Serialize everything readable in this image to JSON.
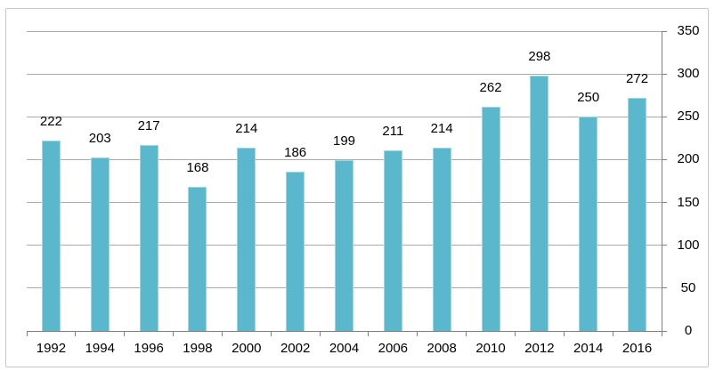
{
  "chart_data": {
    "type": "bar",
    "title": "",
    "xlabel": "",
    "ylabel": "",
    "categories": [
      "1992",
      "1994",
      "1996",
      "1998",
      "2000",
      "2002",
      "2004",
      "2006",
      "2008",
      "2010",
      "2012",
      "2014",
      "2016"
    ],
    "values": [
      222,
      203,
      217,
      168,
      214,
      186,
      199,
      211,
      214,
      262,
      298,
      250,
      272
    ],
    "value_labels": [
      "222",
      "203",
      "217",
      "168",
      "214",
      "186",
      "199",
      "211",
      "214",
      "262",
      "298",
      "250",
      "272"
    ],
    "ylim": [
      0,
      350
    ],
    "yticks": [
      0,
      50,
      100,
      150,
      200,
      250,
      300,
      350
    ],
    "ytick_labels": [
      "0",
      "50",
      "100",
      "150",
      "200",
      "250",
      "300",
      "350"
    ],
    "y_axis_side": "right",
    "grid": "horizontal-major",
    "legend_position": "none",
    "colors": {
      "bar_fill": "#5BB7CC",
      "bar_edge": "#A3D6E3",
      "gridline": "#ABABAB",
      "axis": "#808080",
      "text": "#000000",
      "chart_border": "#C8C8C8",
      "background": "#FFFFFF"
    }
  }
}
